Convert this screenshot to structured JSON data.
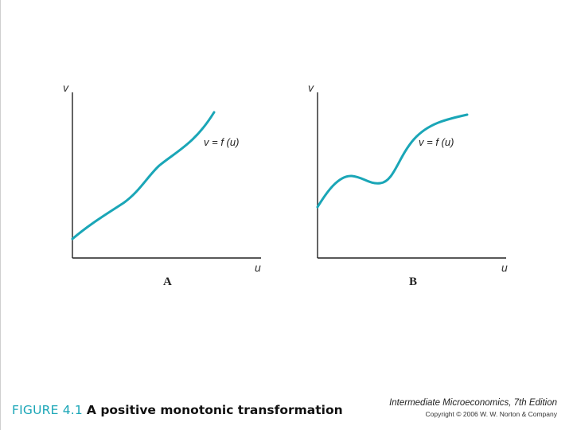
{
  "panels": [
    {
      "id": "A",
      "label": "A",
      "y_axis": "v",
      "x_axis": "u",
      "curve_label": "v = f (u)",
      "curve_color": "#1aa6b7"
    },
    {
      "id": "B",
      "label": "B",
      "y_axis": "v",
      "x_axis": "u",
      "curve_label": "v = f (u)",
      "curve_color": "#1aa6b7"
    }
  ],
  "caption": {
    "figure_number": "FIGURE 4.1",
    "title": "A positive monotonic transformation",
    "figure_number_color": "#1aa6b7"
  },
  "footer": {
    "book_title": "Intermediate Microeconomics, 7th Edition",
    "copyright": "Copyright © 2006 W. W. Norton & Company"
  }
}
